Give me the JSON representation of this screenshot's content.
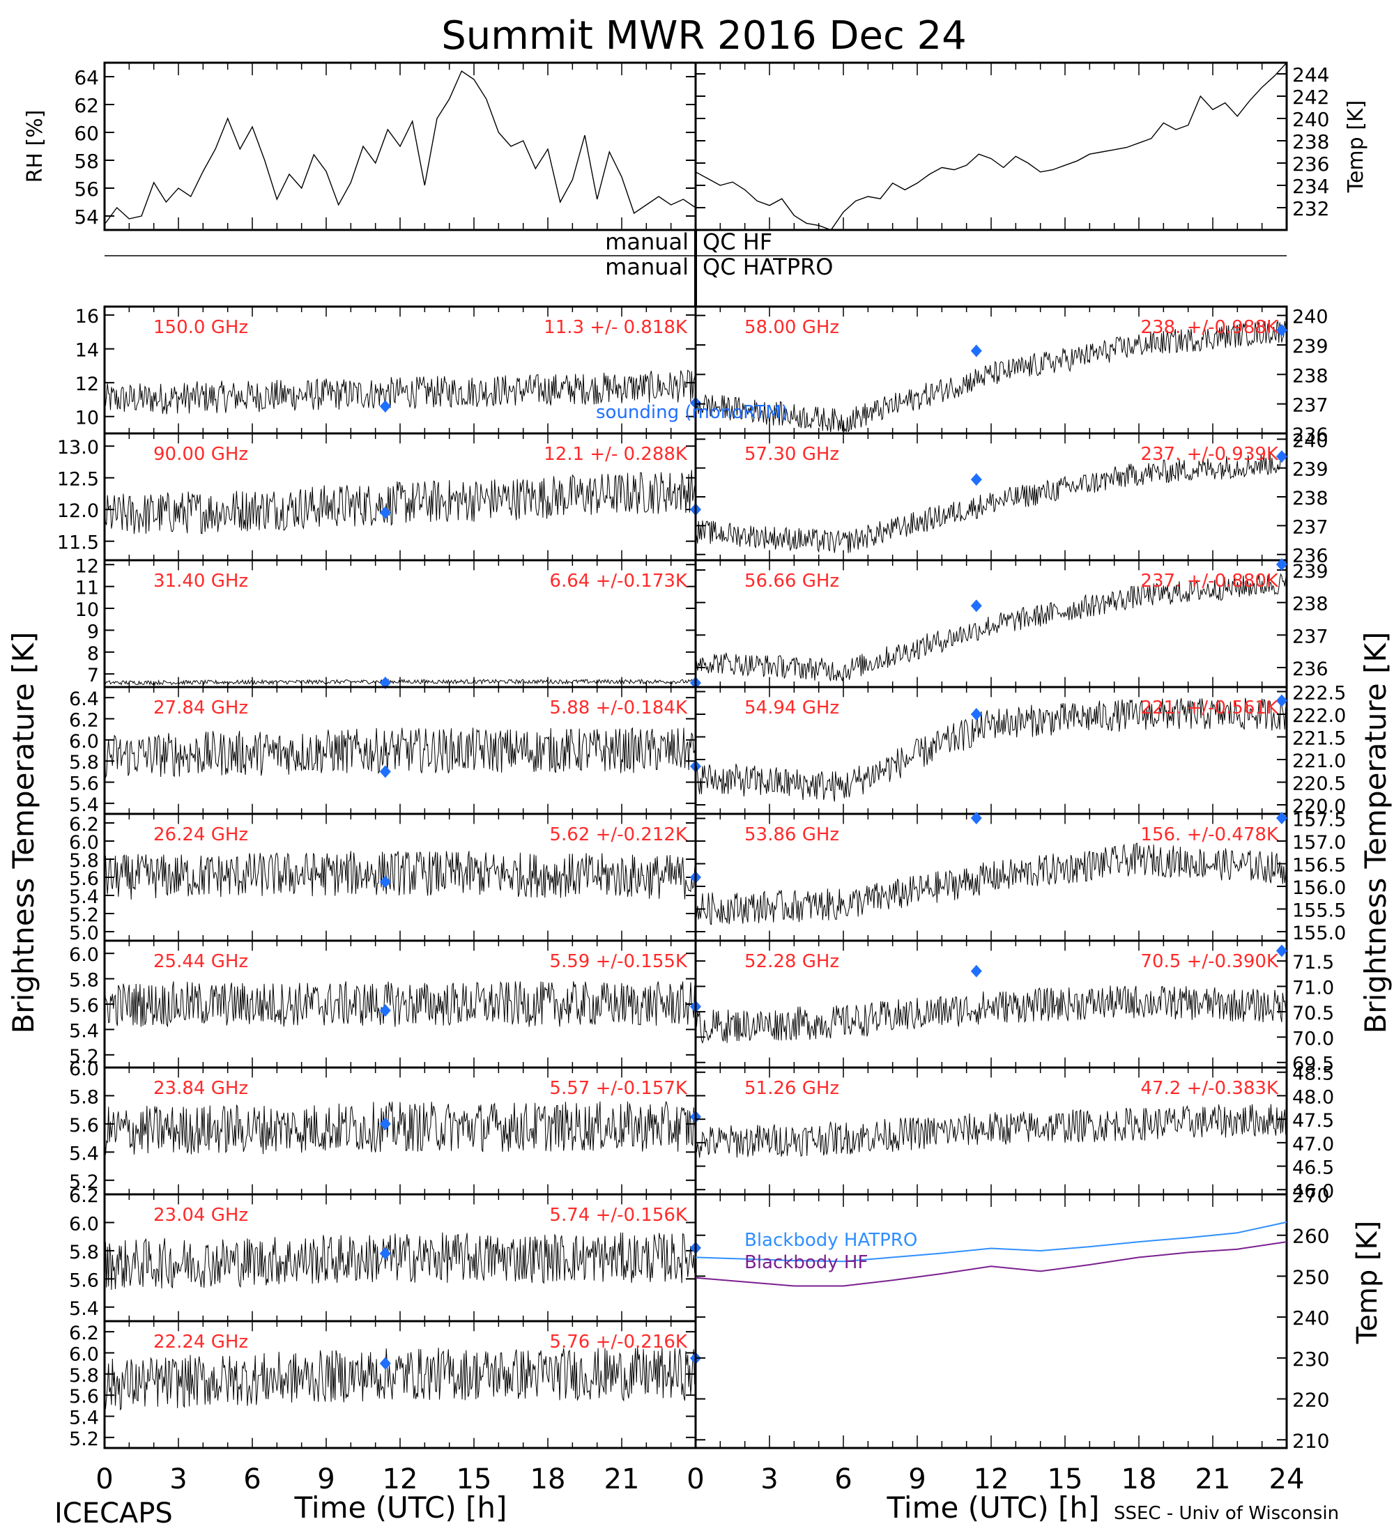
{
  "title": "Summit MWR 2016 Dec 24",
  "footer_left": "ICECAPS",
  "footer_right": "SSEC - Univ of Wisconsin",
  "colors": {
    "axis": "#000000",
    "trace": "#000000",
    "label_red": "#ff2a2a",
    "sounding_blue": "#1f6fff",
    "blackbody_hatpro": "#2f8fff",
    "blackbody_hf": "#7a1f8f"
  },
  "chart_data": [
    {
      "id": "rh",
      "type": "line",
      "ylabel": "RH [%]",
      "x_range": [
        0,
        24
      ],
      "ylim": [
        53,
        65
      ],
      "yticks": [
        "54",
        "56",
        "58",
        "60",
        "62",
        "64"
      ],
      "x_hours": [
        0,
        0.5,
        1,
        1.5,
        2,
        2.5,
        3,
        3.5,
        4,
        4.5,
        5,
        5.5,
        6,
        6.5,
        7,
        7.5,
        8,
        8.5,
        9,
        9.5,
        10,
        10.5,
        11,
        11.5,
        12,
        12.5,
        13,
        13.5,
        14,
        14.5,
        15,
        15.5,
        16,
        16.5,
        17,
        17.5,
        18,
        18.5,
        19,
        19.5,
        20,
        20.5,
        21,
        21.5,
        22,
        22.5,
        23,
        23.5,
        24
      ],
      "values": [
        53.4,
        54.6,
        53.8,
        54.0,
        56.4,
        55.0,
        56.0,
        55.4,
        57.2,
        58.8,
        61.0,
        58.8,
        60.4,
        58.0,
        55.2,
        57.0,
        56.0,
        58.4,
        57.2,
        54.8,
        56.4,
        59.0,
        57.8,
        60.2,
        59.0,
        60.8,
        56.2,
        61.0,
        62.4,
        64.4,
        63.8,
        62.4,
        60.0,
        59.0,
        59.4,
        57.4,
        58.8,
        55.0,
        56.6,
        59.8,
        55.2,
        58.6,
        56.8,
        54.2,
        54.8,
        55.4,
        54.8,
        55.2,
        54.6
      ]
    },
    {
      "id": "temp",
      "type": "line",
      "ylabel": "Temp [K]",
      "x_range": [
        0,
        24
      ],
      "ylim": [
        230,
        245
      ],
      "yticks": [
        "232",
        "234",
        "236",
        "238",
        "240",
        "242",
        "244"
      ],
      "x_hours": [
        0,
        0.5,
        1,
        1.5,
        2,
        2.5,
        3,
        3.5,
        4,
        4.5,
        5,
        5.5,
        6,
        6.5,
        7,
        7.5,
        8,
        8.5,
        9,
        9.5,
        10,
        10.5,
        11,
        11.5,
        12,
        12.5,
        13,
        13.5,
        14,
        14.5,
        15,
        15.5,
        16,
        16.5,
        17,
        17.5,
        18,
        18.5,
        19,
        19.5,
        20,
        20.5,
        21,
        21.5,
        22,
        22.5,
        23,
        23.5,
        24
      ],
      "values": [
        235.2,
        234.6,
        234.0,
        234.3,
        233.6,
        232.6,
        232.2,
        232.8,
        231.3,
        230.6,
        230.4,
        230.0,
        231.6,
        232.6,
        233.0,
        232.8,
        234.2,
        233.6,
        234.2,
        235.0,
        235.6,
        235.4,
        235.8,
        236.8,
        236.4,
        235.6,
        236.6,
        236.0,
        235.2,
        235.4,
        235.8,
        236.2,
        236.8,
        237.0,
        237.2,
        237.4,
        237.8,
        238.2,
        239.6,
        239.0,
        239.4,
        242.0,
        240.8,
        241.4,
        240.2,
        241.6,
        242.8,
        243.8,
        245.0
      ]
    }
  ],
  "qc": {
    "left_label": "manual",
    "hf": "QC HF",
    "hatpro": "QC HATPRO"
  },
  "left_ylabel": "Brightness Temperature [K]",
  "right_ylabel": "Brightness Temperature [K]",
  "sounding_label": "sounding (monoRTM)",
  "channels_left": [
    {
      "freq": "150.0 GHz",
      "stat": "11.3 +/- 0.818K",
      "yticks": [
        "10",
        "12",
        "14",
        "16"
      ],
      "ylim": [
        9,
        16.5
      ],
      "trend": [
        11.0,
        11.4,
        11.8
      ],
      "noise": 0.8,
      "sounding": [
        [
          11.4,
          10.6
        ],
        [
          24,
          10.8
        ]
      ]
    },
    {
      "freq": "90.00 GHz",
      "stat": "12.1 +/- 0.288K",
      "yticks": [
        "11.5",
        "12.0",
        "12.5",
        "13.0"
      ],
      "ylim": [
        11.2,
        13.2
      ],
      "trend": [
        11.9,
        12.1,
        12.3
      ],
      "noise": 0.29,
      "sounding": [
        [
          11.4,
          11.95
        ],
        [
          24,
          12.0
        ]
      ]
    },
    {
      "freq": "31.40 GHz",
      "stat": "6.64 +/-0.173K",
      "yticks": [
        "7",
        "8",
        "9",
        "10",
        "11",
        "12"
      ],
      "ylim": [
        6.4,
        12.2
      ],
      "trend": [
        6.6,
        6.65,
        6.65
      ],
      "noise": 0.08,
      "sounding": [
        [
          11.4,
          6.5
        ],
        [
          24,
          6.5
        ]
      ]
    },
    {
      "freq": "27.84 GHz",
      "stat": "5.88 +/-0.184K",
      "yticks": [
        "5.4",
        "5.6",
        "5.8",
        "6.0",
        "6.2",
        "6.4"
      ],
      "ylim": [
        5.3,
        6.5
      ],
      "trend": [
        5.85,
        5.9,
        5.9
      ],
      "noise": 0.18,
      "sounding": [
        [
          11.4,
          5.7
        ],
        [
          24,
          5.75
        ]
      ]
    },
    {
      "freq": "26.24 GHz",
      "stat": "5.62 +/-0.212K",
      "yticks": [
        "5.0",
        "5.2",
        "5.4",
        "5.6",
        "5.8",
        "6.0",
        "6.2"
      ],
      "ylim": [
        4.9,
        6.3
      ],
      "trend": [
        5.6,
        5.65,
        5.6
      ],
      "noise": 0.21,
      "sounding": [
        [
          11.4,
          5.55
        ],
        [
          24,
          5.6
        ]
      ]
    },
    {
      "freq": "25.44 GHz",
      "stat": "5.59 +/-0.155K",
      "yticks": [
        "5.2",
        "5.4",
        "5.6",
        "5.8",
        "6.0"
      ],
      "ylim": [
        5.1,
        6.1
      ],
      "trend": [
        5.6,
        5.6,
        5.6
      ],
      "noise": 0.15,
      "sounding": [
        [
          11.4,
          5.55
        ],
        [
          24,
          5.58
        ]
      ]
    },
    {
      "freq": "23.84 GHz",
      "stat": "5.57 +/-0.157K",
      "yticks": [
        "5.2",
        "5.4",
        "5.6",
        "5.8",
        "6.0"
      ],
      "ylim": [
        5.1,
        6.0
      ],
      "trend": [
        5.55,
        5.58,
        5.58
      ],
      "noise": 0.15,
      "sounding": [
        [
          11.4,
          5.6
        ],
        [
          24,
          5.65
        ]
      ]
    },
    {
      "freq": "23.04 GHz",
      "stat": "5.74 +/-0.156K",
      "yticks": [
        "5.4",
        "5.6",
        "5.8",
        "6.0",
        "6.2"
      ],
      "ylim": [
        5.3,
        6.2
      ],
      "trend": [
        5.7,
        5.75,
        5.75
      ],
      "noise": 0.15,
      "sounding": [
        [
          11.4,
          5.78
        ],
        [
          24,
          5.82
        ]
      ]
    },
    {
      "freq": "22.24 GHz",
      "stat": "5.76 +/-0.216K",
      "yticks": [
        "5.2",
        "5.4",
        "5.6",
        "5.8",
        "6.0",
        "6.2"
      ],
      "ylim": [
        5.1,
        6.3
      ],
      "trend": [
        5.7,
        5.8,
        5.8
      ],
      "noise": 0.21,
      "sounding": [
        [
          11.4,
          5.9
        ],
        [
          24,
          5.95
        ]
      ]
    }
  ],
  "channels_right": [
    {
      "freq": "58.00 GHz",
      "stat": "238. +/-0.988K",
      "yticks": [
        "236",
        "237",
        "238",
        "239",
        "240"
      ],
      "ylim": [
        236.0,
        240.3
      ],
      "trend": [
        237.0,
        236.4,
        238.0,
        239.0,
        239.5
      ],
      "noise": 0.35,
      "sounding": [
        [
          11.4,
          238.8
        ],
        [
          23.8,
          239.5
        ]
      ]
    },
    {
      "freq": "57.30 GHz",
      "stat": "237. +/-0.939K",
      "yticks": [
        "236",
        "237",
        "238",
        "239",
        "240"
      ],
      "ylim": [
        235.8,
        240.2
      ],
      "trend": [
        236.8,
        236.4,
        237.8,
        238.8,
        239.2
      ],
      "noise": 0.35,
      "sounding": [
        [
          11.4,
          238.6
        ],
        [
          23.8,
          239.4
        ]
      ]
    },
    {
      "freq": "56.66 GHz",
      "stat": "237. +/-0.880K",
      "yticks": [
        "236",
        "237",
        "238",
        "239"
      ],
      "ylim": [
        235.4,
        239.3
      ],
      "trend": [
        236.2,
        235.9,
        237.3,
        238.2,
        238.6
      ],
      "noise": 0.3,
      "sounding": [
        [
          11.4,
          237.9
        ],
        [
          23.8,
          239.2
        ]
      ]
    },
    {
      "freq": "54.94 GHz",
      "stat": "221. +/-0.561K",
      "yticks": [
        "220.0",
        "220.5",
        "221.0",
        "221.5",
        "222.0",
        "222.5"
      ],
      "ylim": [
        219.8,
        222.6
      ],
      "trend": [
        220.6,
        220.4,
        221.8,
        222.0,
        222.0
      ],
      "noise": 0.3,
      "sounding": [
        [
          11.4,
          222.0
        ],
        [
          23.8,
          222.3
        ]
      ]
    },
    {
      "freq": "53.86 GHz",
      "stat": "156. +/-0.478K",
      "yticks": [
        "155.0",
        "155.5",
        "156.0",
        "156.5",
        "157.0",
        "157.5"
      ],
      "ylim": [
        154.8,
        157.6
      ],
      "trend": [
        155.5,
        155.6,
        156.2,
        156.6,
        156.4
      ],
      "noise": 0.3,
      "sounding": [
        [
          11.4,
          158.0
        ],
        [
          23.8,
          158.0
        ]
      ]
    },
    {
      "freq": "52.28 GHz",
      "stat": "70.5 +/-0.390K",
      "yticks": [
        "69.5",
        "70.0",
        "70.5",
        "71.0",
        "71.5"
      ],
      "ylim": [
        69.4,
        71.9
      ],
      "trend": [
        70.2,
        70.3,
        70.6,
        70.7,
        70.6
      ],
      "noise": 0.28,
      "sounding": [
        [
          11.4,
          71.3
        ],
        [
          23.8,
          71.7
        ]
      ]
    },
    {
      "freq": "51.26 GHz",
      "stat": "47.2 +/-0.383K",
      "yticks": [
        "46.0",
        "46.5",
        "47.0",
        "47.5",
        "48.0",
        "48.5"
      ],
      "ylim": [
        45.9,
        48.6
      ],
      "trend": [
        47.0,
        47.1,
        47.3,
        47.4,
        47.5
      ],
      "noise": 0.3,
      "sounding": []
    }
  ],
  "blackbody": {
    "ylabel": "Temp [K]",
    "ylim": [
      208,
      270
    ],
    "yticks": [
      "210",
      "220",
      "230",
      "240",
      "250",
      "260",
      "270"
    ],
    "legend": [
      "Blackbody HATPRO",
      "Blackbody HF"
    ],
    "x_hours": [
      0,
      2,
      4,
      6,
      8,
      10,
      12,
      14,
      16,
      18,
      20,
      22,
      24
    ],
    "hatpro": [
      254.6,
      254.2,
      253.8,
      253.6,
      254.6,
      255.6,
      256.8,
      256.2,
      257.2,
      258.4,
      259.4,
      260.6,
      263.2
    ],
    "hf": [
      249.6,
      248.6,
      247.6,
      247.6,
      249.0,
      250.6,
      252.4,
      251.2,
      252.8,
      254.6,
      255.8,
      256.6,
      258.4
    ]
  },
  "x_axis": {
    "label": "Time (UTC) [h]",
    "left_ticks": [
      "0",
      "3",
      "6",
      "9",
      "12",
      "15",
      "18",
      "21"
    ],
    "right_ticks": [
      "0",
      "3",
      "6",
      "9",
      "12",
      "15",
      "18",
      "21",
      "24"
    ]
  }
}
